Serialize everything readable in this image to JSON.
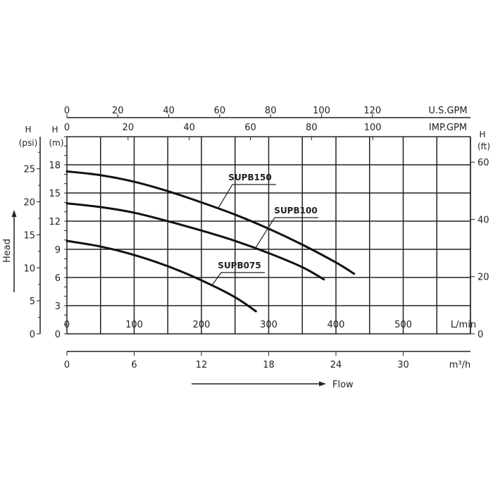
{
  "chart_data": {
    "type": "line",
    "xlabel": "Flow",
    "ylabel": "Head",
    "x_axes": {
      "lpm": {
        "unit": "L/min",
        "range": [
          0,
          600
        ],
        "ticks": [
          0,
          100,
          200,
          300,
          400,
          500
        ],
        "grid_step": 50
      },
      "m3h": {
        "unit": "m³/h",
        "ticks": [
          0,
          6,
          12,
          18,
          24,
          30
        ]
      },
      "usgpm": {
        "unit": "U.S.GPM",
        "ticks": [
          0,
          20,
          40,
          60,
          80,
          100,
          120
        ]
      },
      "impgpm": {
        "unit": "IMP.GPM",
        "ticks": [
          0,
          20,
          40,
          60,
          80,
          100
        ]
      }
    },
    "y_axes": {
      "m": {
        "unit_top": "H",
        "unit": "(m)",
        "range": [
          0,
          21
        ],
        "ticks": [
          0,
          3,
          6,
          9,
          12,
          15,
          18
        ]
      },
      "psi": {
        "unit_top": "H",
        "unit": "(psi)",
        "ticks": [
          0,
          5,
          10,
          15,
          20,
          25
        ]
      },
      "ft": {
        "unit_top": "H",
        "unit": "(ft)",
        "ticks": [
          0,
          20,
          40,
          60
        ]
      }
    },
    "grid": true,
    "series": [
      {
        "name": "SUPB150",
        "x": [
          0,
          50,
          100,
          150,
          200,
          250,
          300,
          350,
          400,
          427
        ],
        "y": [
          17.3,
          16.9,
          16.2,
          15.2,
          14.0,
          12.7,
          11.2,
          9.5,
          7.6,
          6.4
        ]
      },
      {
        "name": "SUPB100",
        "x": [
          0,
          50,
          100,
          150,
          200,
          250,
          300,
          350,
          382
        ],
        "y": [
          13.9,
          13.5,
          12.9,
          12.0,
          11.0,
          9.9,
          8.6,
          7.1,
          5.8
        ]
      },
      {
        "name": "SUPB075",
        "x": [
          0,
          50,
          100,
          150,
          200,
          250,
          281
        ],
        "y": [
          9.9,
          9.3,
          8.4,
          7.2,
          5.7,
          3.9,
          2.4
        ]
      }
    ]
  }
}
